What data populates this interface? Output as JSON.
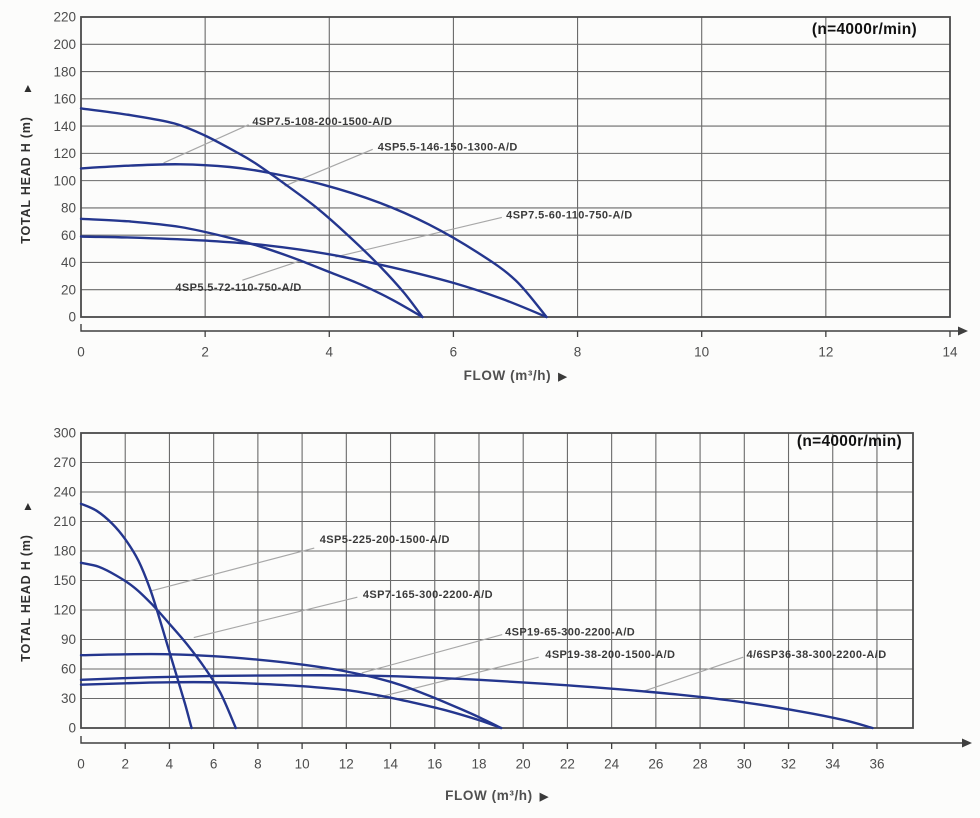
{
  "icons": {
    "y_axis_arrow": "▲",
    "x_axis_arrow": "▶"
  },
  "colors": {
    "background": "#fcfcfb",
    "curve": "#24368e",
    "grid": "#6a6a6a",
    "frame": "#4a4a4a",
    "callout": "#a8a8a8",
    "label_text": "#3a3a3a",
    "tick_text": "#4d4d4d",
    "axis": "#3f3f3f"
  },
  "chart_data": [
    {
      "type": "line",
      "title": "(n=4000r/min)",
      "xlabel": "FLOW (m³/h)",
      "ylabel": "TOTAL HEAD H (m)",
      "xlim": [
        0,
        14
      ],
      "ylim": [
        0,
        220
      ],
      "x_ticks": [
        0,
        2,
        4,
        6,
        8,
        10,
        12,
        14
      ],
      "y_ticks": [
        0,
        20,
        40,
        60,
        80,
        100,
        120,
        140,
        160,
        180,
        200,
        220
      ],
      "grid": true,
      "legend_position": "none",
      "series": [
        {
          "name": "4SP5.5-146-150-1300-A/D",
          "points": [
            [
              0,
              153
            ],
            [
              0.8,
              148
            ],
            [
              1.5,
              142
            ],
            [
              2,
              133
            ],
            [
              2.5,
              121
            ],
            [
              2.8,
              113
            ],
            [
              3.3,
              97
            ],
            [
              3.8,
              80
            ],
            [
              4.3,
              60
            ],
            [
              4.8,
              38
            ],
            [
              5.2,
              18
            ],
            [
              5.5,
              0
            ]
          ]
        },
        {
          "name": "4SP7.5-108-200-1500-A/D",
          "points": [
            [
              0,
              109
            ],
            [
              0.8,
              111
            ],
            [
              1.6,
              112
            ],
            [
              2.4,
              110
            ],
            [
              3,
              106
            ],
            [
              3.9,
              97
            ],
            [
              4.8,
              84
            ],
            [
              5.6,
              68
            ],
            [
              6.4,
              47
            ],
            [
              7,
              27
            ],
            [
              7.5,
              0
            ]
          ]
        },
        {
          "name": "4SP5.5-72-110-750-A/D",
          "points": [
            [
              0,
              72
            ],
            [
              0.8,
              70
            ],
            [
              1.6,
              66
            ],
            [
              2.4,
              58
            ],
            [
              3,
              50
            ],
            [
              3.5,
              42
            ],
            [
              4,
              33
            ],
            [
              4.5,
              24
            ],
            [
              5,
              13
            ],
            [
              5.5,
              0
            ]
          ]
        },
        {
          "name": "4SP7.5-60-110-750-A/D",
          "points": [
            [
              0,
              59
            ],
            [
              1,
              58
            ],
            [
              2,
              56
            ],
            [
              3,
              52.5
            ],
            [
              4,
              46
            ],
            [
              5,
              36.5
            ],
            [
              6,
              25
            ],
            [
              6.8,
              13
            ],
            [
              7.5,
              0
            ]
          ]
        }
      ],
      "annotations": [
        {
          "text": "4SP7.5-108-200-1500-A/D",
          "x": 2.76,
          "y": 143.5,
          "callout": [
            [
              2.7,
              141
            ],
            [
              1.33,
              113
            ]
          ]
        },
        {
          "text": "4SP5.5-146-150-1300-A/D",
          "x": 4.78,
          "y": 125,
          "callout": [
            [
              4.7,
              123
            ],
            [
              3.28,
              96
            ]
          ]
        },
        {
          "text": "4SP7.5-60-110-750-A/D",
          "x": 6.85,
          "y": 75,
          "callout": [
            [
              6.78,
              73
            ],
            [
              4.1,
              44
            ]
          ]
        },
        {
          "text": "4SP5.5-72-110-750-A/D",
          "x": 1.52,
          "y": 22,
          "callout": [
            [
              2.6,
              27
            ],
            [
              3.52,
              41
            ]
          ]
        }
      ]
    },
    {
      "type": "line",
      "title": "(n=4000r/min)",
      "xlabel": "FLOW (m³/h)",
      "ylabel": "TOTAL HEAD H (m)",
      "xlim": [
        0,
        36
      ],
      "ylim": [
        0,
        300
      ],
      "x_ticks": [
        0,
        2,
        4,
        6,
        8,
        10,
        12,
        14,
        16,
        18,
        20,
        22,
        24,
        26,
        28,
        30,
        32,
        34,
        36
      ],
      "y_ticks": [
        0,
        30,
        60,
        90,
        120,
        150,
        180,
        210,
        240,
        270,
        300
      ],
      "grid": true,
      "legend_position": "none",
      "series": [
        {
          "name": "4SP5-225-200-1500-A/D",
          "points": [
            [
              0,
              228
            ],
            [
              0.7,
              221
            ],
            [
              1.4,
              208
            ],
            [
              2,
              192
            ],
            [
              2.6,
              170
            ],
            [
              3.1,
              143
            ],
            [
              3.5,
              115
            ],
            [
              3.9,
              85
            ],
            [
              4.3,
              55
            ],
            [
              4.7,
              25
            ],
            [
              5,
              0
            ]
          ]
        },
        {
          "name": "4SP7-165-300-2200-A/D",
          "points": [
            [
              0,
              168
            ],
            [
              0.8,
              164
            ],
            [
              1.6,
              155
            ],
            [
              2.4,
              143
            ],
            [
              3.2,
              126
            ],
            [
              4,
              106
            ],
            [
              4.8,
              85
            ],
            [
              5.6,
              61
            ],
            [
              6.3,
              36
            ],
            [
              7,
              0
            ]
          ]
        },
        {
          "name": "4SP19-65-300-2200-A/D",
          "points": [
            [
              0,
              74
            ],
            [
              2,
              75
            ],
            [
              4,
              75
            ],
            [
              6,
              73
            ],
            [
              8,
              69.5
            ],
            [
              10,
              64.5
            ],
            [
              12,
              57.5
            ],
            [
              14,
              47
            ],
            [
              15.5,
              35
            ],
            [
              17,
              21
            ],
            [
              18,
              11
            ],
            [
              19,
              0
            ]
          ]
        },
        {
          "name": "4SP19-38-200-1500-A/D",
          "points": [
            [
              0,
              44
            ],
            [
              2,
              45.5
            ],
            [
              4,
              46.5
            ],
            [
              6,
              46.5
            ],
            [
              8,
              45
            ],
            [
              10,
              42.5
            ],
            [
              12,
              38.5
            ],
            [
              13.5,
              33
            ],
            [
              15,
              26
            ],
            [
              16.5,
              18
            ],
            [
              18,
              8
            ],
            [
              19,
              0
            ]
          ]
        },
        {
          "name": "4/6SP36-38-300-2200-A/D",
          "points": [
            [
              0,
              49
            ],
            [
              3,
              51.5
            ],
            [
              6,
              53
            ],
            [
              9,
              53.5
            ],
            [
              12,
              53.5
            ],
            [
              15,
              52
            ],
            [
              18,
              49
            ],
            [
              21,
              45
            ],
            [
              24,
              40
            ],
            [
              27,
              34
            ],
            [
              30,
              26
            ],
            [
              32.5,
              17
            ],
            [
              34.5,
              8
            ],
            [
              35.8,
              0
            ]
          ]
        }
      ],
      "annotations": [
        {
          "text": "4SP5-225-200-1500-A/D",
          "x": 10.8,
          "y": 192,
          "callout": [
            [
              10.55,
              183
            ],
            [
              3.1,
              139
            ]
          ]
        },
        {
          "text": "4SP7-165-300-2200-A/D",
          "x": 12.75,
          "y": 136,
          "callout": [
            [
              12.5,
              133
            ],
            [
              5.1,
              92
            ]
          ]
        },
        {
          "text": "4SP19-65-300-2200-A/D",
          "x": 19.18,
          "y": 98,
          "callout": [
            [
              19.05,
              95
            ],
            [
              12.7,
              56
            ]
          ]
        },
        {
          "text": "4SP19-38-200-1500-A/D",
          "x": 21.0,
          "y": 75,
          "callout": [
            [
              20.7,
              72
            ],
            [
              13.4,
              31
            ]
          ]
        },
        {
          "text": "4/6SP36-38-300-2200-A/D",
          "x": 30.1,
          "y": 75,
          "callout": [
            [
              29.95,
              72
            ],
            [
              25.4,
              37
            ]
          ]
        }
      ]
    }
  ]
}
